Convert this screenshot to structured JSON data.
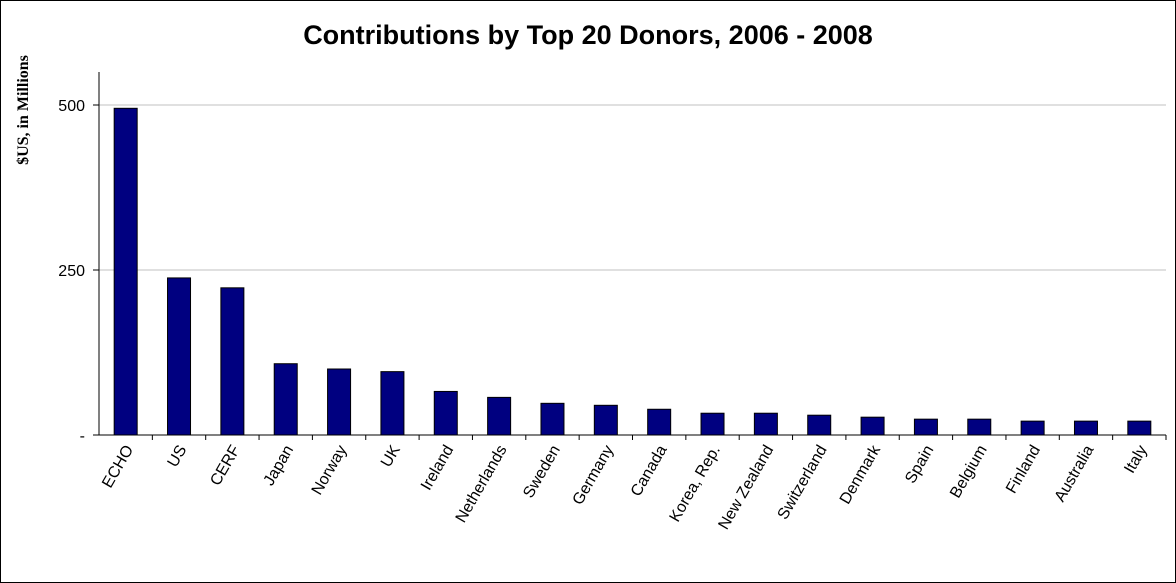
{
  "chart_data": {
    "type": "bar",
    "title": "Contributions by Top 20 Donors, 2006 - 2008",
    "xlabel": "",
    "ylabel": "$US, in Millions",
    "ylim": [
      0,
      550
    ],
    "yticks": [
      {
        "value": 0,
        "label": "-"
      },
      {
        "value": 250,
        "label": "250"
      },
      {
        "value": 500,
        "label": "500"
      }
    ],
    "grid": true,
    "bar_color": "#000080",
    "categories": [
      "ECHO",
      "US",
      "CERF",
      "Japan",
      "Norway",
      "UK",
      "Ireland",
      "Netherlands",
      "Sweden",
      "Germany",
      "Canada",
      "Korea, Rep.",
      "New Zealand",
      "Switzerland",
      "Denmark",
      "Spain",
      "Belgium",
      "Finland",
      "Australia",
      "Italy"
    ],
    "values": [
      495,
      238,
      223,
      108,
      100,
      96,
      66,
      57,
      48,
      45,
      39,
      33,
      33,
      30,
      27,
      24,
      24,
      21,
      21,
      21
    ]
  }
}
